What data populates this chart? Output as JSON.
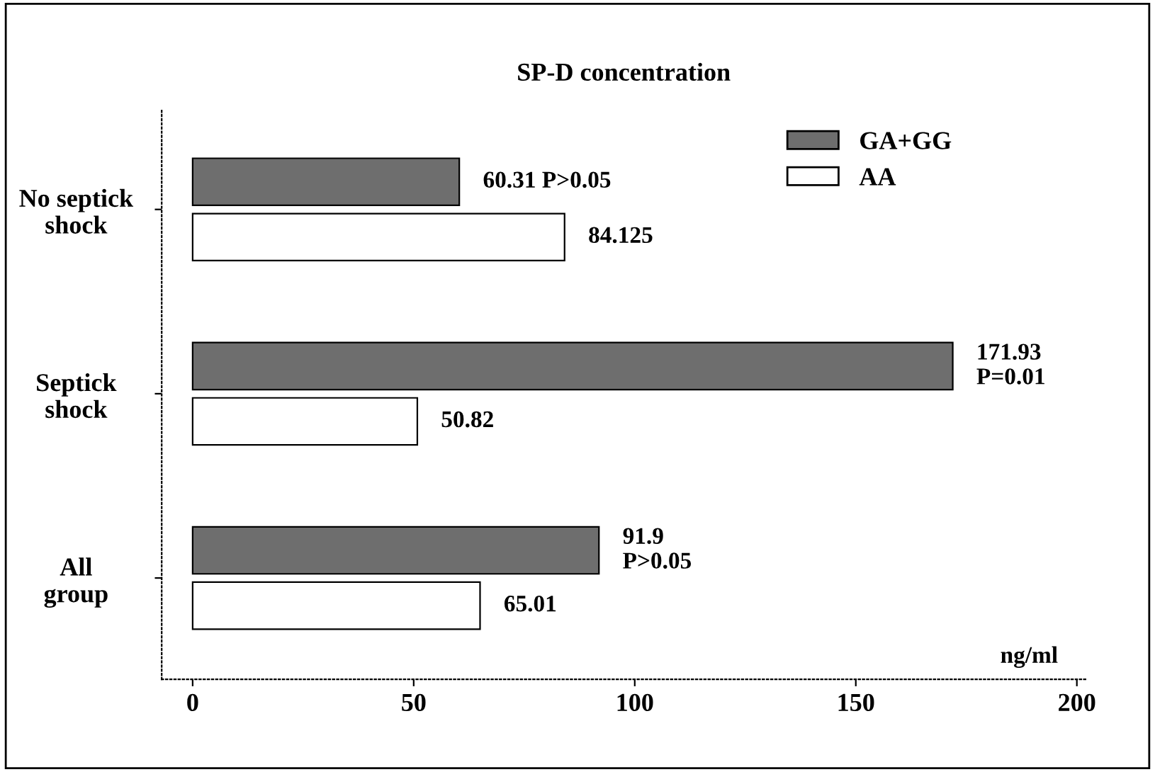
{
  "chart_data": {
    "type": "bar",
    "orientation": "horizontal",
    "title": "SP-D concentration",
    "xlabel": "ng/ml",
    "categories": [
      "No septick\nshock",
      "Septick\nshock",
      "All\ngroup"
    ],
    "series": [
      {
        "name": "GA+GG",
        "color": "#6e6e6e",
        "values": [
          60.31,
          171.93,
          91.9
        ],
        "value_labels": [
          "60.31 P>0.05",
          "171.93\nP=0.01",
          "91.9\nP>0.05"
        ]
      },
      {
        "name": "AA",
        "color": "#ffffff",
        "values": [
          84.125,
          50.82,
          65.01
        ],
        "value_labels": [
          "84.125",
          "50.82",
          "65.01"
        ]
      }
    ],
    "xlim": [
      -7,
      202
    ],
    "xticks": [
      0,
      50,
      100,
      150,
      200
    ],
    "grid": false,
    "legend": "top right"
  }
}
